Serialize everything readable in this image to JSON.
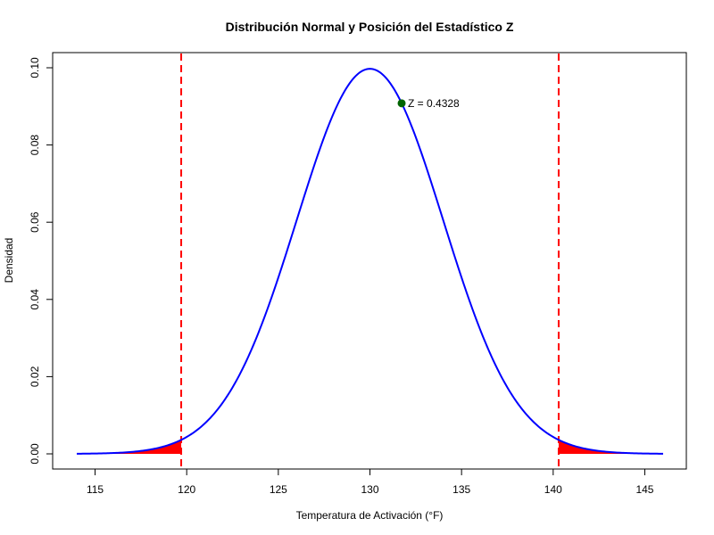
{
  "chart_data": {
    "type": "line",
    "title": "Distribución Normal y Posición del Estadístico Z",
    "xlabel": "Temperatura de Activación (°F)",
    "ylabel": "Densidad",
    "xlim": [
      114,
      146
    ],
    "ylim": [
      0,
      0.1
    ],
    "x_ticks": [
      115,
      120,
      125,
      130,
      135,
      140,
      145
    ],
    "y_ticks": [
      0.0,
      0.02,
      0.04,
      0.06,
      0.08,
      0.1
    ],
    "y_tick_labels": [
      "0.00",
      "0.02",
      "0.04",
      "0.06",
      "0.08",
      "0.10"
    ],
    "curve": {
      "kind": "normal-density",
      "mean": 130,
      "sd": 4
    },
    "critical_lines": [
      119.7,
      140.3
    ],
    "shaded_tails": {
      "left_upper_bound": 119.7,
      "right_lower_bound": 140.3
    },
    "z_point": {
      "x": 131.73,
      "y": 0.0908,
      "label": "Z = 0.4328"
    },
    "colors": {
      "curve": "#0000ff",
      "critical": "#ff0000",
      "tails": "#ff0000",
      "point": "#006400"
    }
  }
}
